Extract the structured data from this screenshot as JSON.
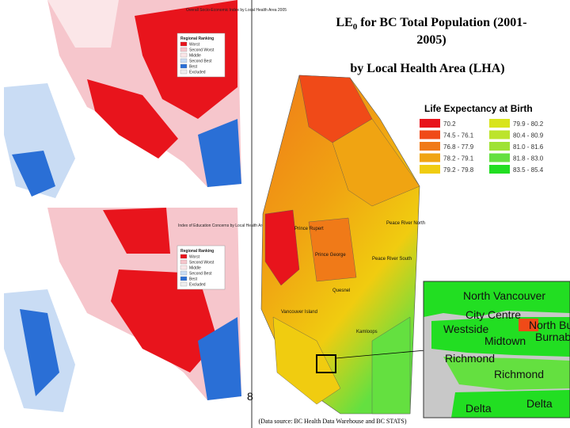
{
  "slide": {
    "title_main": "LE",
    "title_subscript": "0",
    "title_rest": "for BC Total Population (2001-",
    "title_line2": "2005)",
    "subtitle": "by Local Health Area (LHA)",
    "page_number": "8",
    "source": "(Data source: BC Health Data Warehouse and BC STATS)"
  },
  "left_maps": [
    {
      "title": "Overall Socio-Economic Index by Local Health Area 2005",
      "legend_title": "Regional Ranking",
      "legend": [
        "Worst",
        "Second Worst",
        "Middle",
        "Second Best",
        "Best",
        "Excluded"
      ]
    },
    {
      "title": "Index of Education Concerns by Local Health Area 2003",
      "legend_title": "Regional Ranking",
      "legend": [
        "Worst",
        "Second Worst",
        "Middle",
        "Second Best",
        "Best",
        "Excluded"
      ]
    }
  ],
  "legend": {
    "title": "Life Expectancy at Birth",
    "items": [
      {
        "label": "70.2",
        "color": "#e8141c"
      },
      {
        "label": "74.5 - 76.1",
        "color": "#f04a18"
      },
      {
        "label": "76.8 - 77.9",
        "color": "#f07a18"
      },
      {
        "label": "78.2 - 79.1",
        "color": "#f0a412"
      },
      {
        "label": "79.2 - 79.8",
        "color": "#f0cc10"
      },
      {
        "label": "79.9 - 80.2",
        "color": "#d8e41c"
      },
      {
        "label": "80.4 - 80.9",
        "color": "#bce42c"
      },
      {
        "label": "81.0 - 81.6",
        "color": "#9ee236"
      },
      {
        "label": "81.8 - 83.0",
        "color": "#64e040"
      },
      {
        "label": "83.5 - 85.4",
        "color": "#22de22"
      }
    ]
  },
  "map_labels": [
    "Peace River North",
    "Peace River South",
    "Prince George",
    "Prince Rupert",
    "Quesnel",
    "Kamloops",
    "Vancouver Island"
  ],
  "inset_labels": [
    "North Vancouver",
    "City Centre",
    "Westside",
    "North Burnaby",
    "Burnaby",
    "Midtown",
    "Richmond",
    "Richmond",
    "Delta",
    "Delta"
  ]
}
